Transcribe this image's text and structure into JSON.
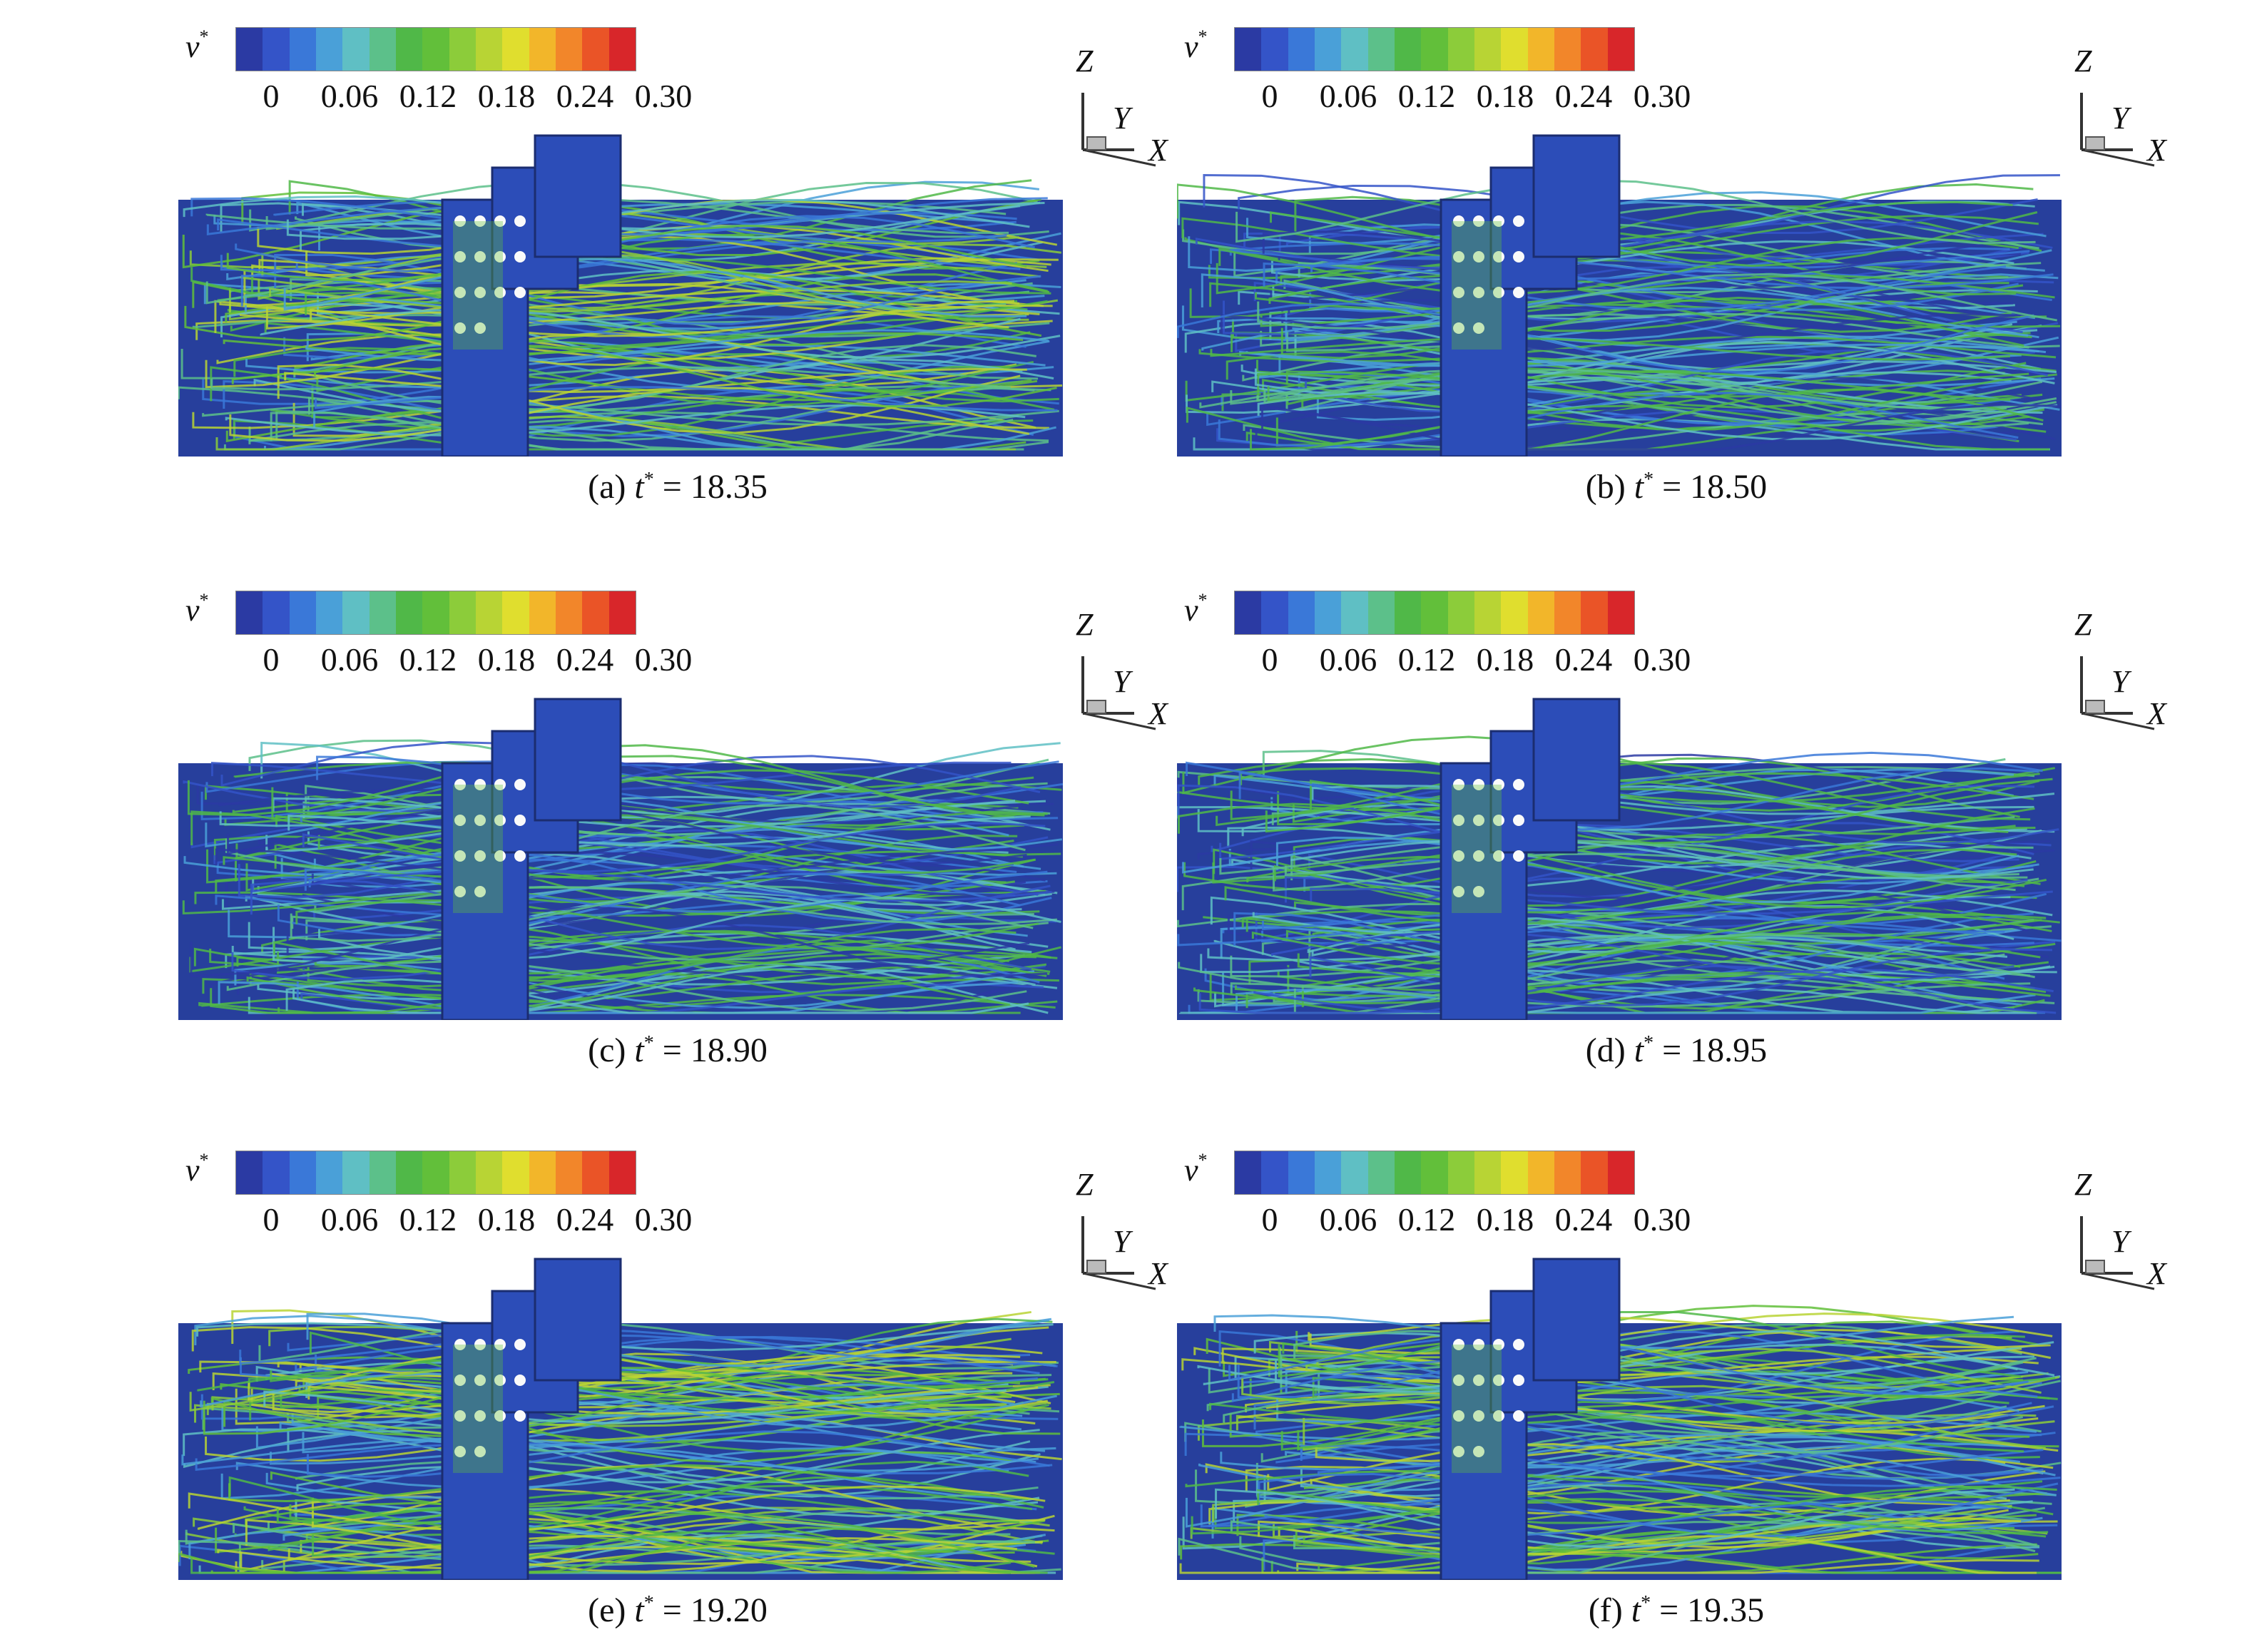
{
  "legend": {
    "variable": "v",
    "superscript": "*",
    "ticks": [
      "0",
      "0.06",
      "0.12",
      "0.18",
      "0.24",
      "0.30"
    ],
    "colors": [
      "#2b3aa3",
      "#3454c8",
      "#3a78d8",
      "#4aa0d8",
      "#5fbfc4",
      "#5cc08a",
      "#50b848",
      "#62bf3a",
      "#8ccc3a",
      "#b8d434",
      "#e0de2e",
      "#f2b62a",
      "#f2862a",
      "#ea5427",
      "#d8262a"
    ]
  },
  "axes_icon": {
    "z": "Z",
    "y": "Y",
    "x": "X"
  },
  "panels": [
    {
      "label": "(a)",
      "var": "t",
      "value": "= 18.35"
    },
    {
      "label": "(b)",
      "var": "t",
      "value": "= 18.50"
    },
    {
      "label": "(c)",
      "var": "t",
      "value": "= 18.90"
    },
    {
      "label": "(d)",
      "var": "t",
      "value": "= 18.95"
    },
    {
      "label": "(e)",
      "var": "t",
      "value": "= 19.20"
    },
    {
      "label": "(f)",
      "var": "t",
      "value": "= 19.35"
    }
  ]
}
